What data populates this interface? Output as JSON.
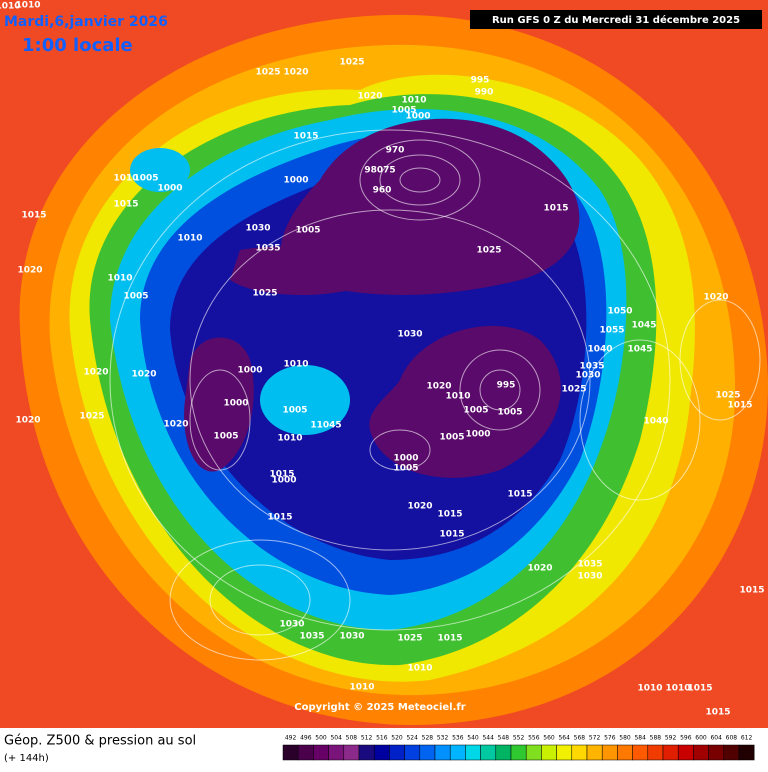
{
  "header": {
    "title": "Mardi,6,janvier 2026",
    "subtitle": "1:00 locale",
    "run": "Run GFS 0 Z du Mercredi 31 décembre 2025"
  },
  "map": {
    "copyright": "Copyright © 2025 Meteociel.fr",
    "pressure_labels": [
      1010,
      1015,
      1025,
      1020,
      1025,
      1020,
      995,
      990,
      1010,
      1005,
      1000,
      970,
      98075,
      960,
      1015,
      1005,
      1000,
      1010,
      1015,
      1015,
      1000,
      1030,
      1035,
      1005,
      1025,
      1025,
      1010,
      1005,
      1010,
      1030,
      1020,
      1020,
      1025,
      1000,
      1000,
      1020,
      1005,
      1010,
      1005,
      1010,
      11045,
      1020,
      1010,
      1005,
      1000,
      995,
      1005,
      1000,
      1005,
      1005,
      1015,
      1000,
      1015,
      1020,
      1015,
      1015,
      1020,
      1035,
      1030,
      1030,
      1035,
      1030,
      1025,
      1015,
      1010,
      1010,
      1010,
      1015,
      1010,
      1020,
      1050,
      1055,
      1045,
      1040,
      1045,
      1035,
      1030,
      1025,
      1040,
      1020,
      1015,
      1015,
      1025,
      1015,
      1010,
      1020,
      1015
    ]
  },
  "footer": {
    "title": "Géop. Z500 & pression au sol",
    "lead": "(+ 144h)",
    "scale": {
      "values": [
        492,
        496,
        500,
        504,
        508,
        512,
        516,
        520,
        524,
        528,
        532,
        536,
        540,
        544,
        548,
        552,
        556,
        560,
        564,
        568,
        572,
        576,
        580,
        584,
        588,
        592,
        596,
        600,
        604,
        608,
        612
      ],
      "colors": [
        "#2a002a",
        "#4a004a",
        "#660066",
        "#7a147a",
        "#8c2a8c",
        "#1a0a80",
        "#0000a0",
        "#0020c8",
        "#0040e0",
        "#0064f0",
        "#0090ff",
        "#00b4ff",
        "#00d8e8",
        "#00c8a0",
        "#00b464",
        "#30c830",
        "#80e020",
        "#c8f000",
        "#f0f000",
        "#ffd800",
        "#ffb400",
        "#ff9600",
        "#ff7800",
        "#ff5a00",
        "#f03c00",
        "#e01e00",
        "#c80000",
        "#a00000",
        "#780000",
        "#500000",
        "#200000"
      ]
    }
  }
}
